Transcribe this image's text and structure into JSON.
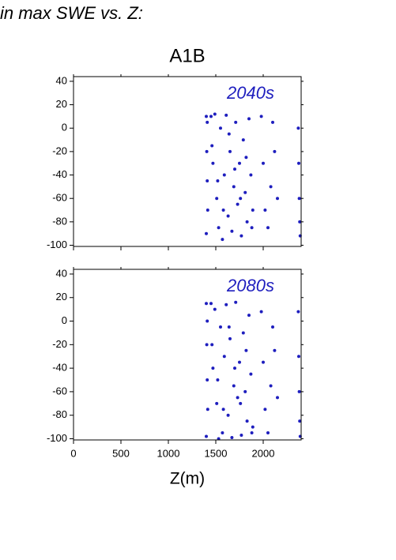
{
  "chart_data": [
    {
      "type": "scatter",
      "title": "in max SWE vs. Z:",
      "subtitle": "A1B",
      "annotation": "2040s",
      "xlim": [
        0,
        2400
      ],
      "ylim": [
        -101,
        44
      ],
      "yticks": [
        40,
        20,
        0,
        -20,
        -40,
        -60,
        -80,
        -100
      ],
      "series": [
        {
          "color": "#1e1ebe",
          "x": [
            1400,
            1405,
            1410,
            1415,
            1400,
            1410,
            1450,
            1470,
            1490,
            1510,
            1530,
            1550,
            1570,
            1590,
            1610,
            1630,
            1650,
            1670,
            1690,
            1710,
            1730,
            1750,
            1770,
            1790,
            1810,
            1830,
            1850,
            1870,
            1890,
            1460,
            1520,
            1580,
            1640,
            1700,
            1760,
            1820,
            1880,
            1980,
            2000,
            2020,
            2050,
            2080,
            2100,
            2120,
            2150,
            2370,
            2375,
            2380,
            2385,
            2390
          ],
          "values": [
            10,
            -20,
            -45,
            -70,
            -90,
            5,
            10,
            -30,
            12,
            -60,
            -85,
            0,
            -95,
            -40,
            11,
            -75,
            -20,
            -88,
            -50,
            5,
            -65,
            -30,
            -92,
            -10,
            -55,
            -80,
            8,
            -40,
            -70,
            -15,
            -45,
            -70,
            -5,
            -35,
            -60,
            -25,
            -85,
            10,
            -30,
            -70,
            -85,
            -50,
            5,
            -20,
            -60,
            0,
            -30,
            -60,
            -80,
            -92
          ]
        }
      ]
    },
    {
      "type": "scatter",
      "annotation": "2080s",
      "xlabel": "Z(m)",
      "xlim": [
        0,
        2400
      ],
      "ylim": [
        -101,
        44
      ],
      "xticks": [
        0,
        500,
        1000,
        1500,
        2000
      ],
      "yticks": [
        40,
        20,
        0,
        -20,
        -40,
        -60,
        -80,
        -100
      ],
      "series": [
        {
          "color": "#1e1ebe",
          "x": [
            1400,
            1405,
            1410,
            1415,
            1400,
            1410,
            1450,
            1470,
            1490,
            1510,
            1530,
            1550,
            1570,
            1590,
            1610,
            1630,
            1650,
            1670,
            1690,
            1710,
            1730,
            1750,
            1770,
            1790,
            1810,
            1830,
            1850,
            1870,
            1890,
            1460,
            1520,
            1580,
            1640,
            1700,
            1760,
            1820,
            1880,
            1980,
            2000,
            2020,
            2050,
            2080,
            2100,
            2120,
            2150,
            2370,
            2375,
            2380,
            2385,
            2390
          ],
          "values": [
            15,
            -20,
            -50,
            -75,
            -98,
            0,
            15,
            -40,
            10,
            -70,
            -100,
            -5,
            -95,
            -30,
            14,
            -80,
            -15,
            -99,
            -55,
            16,
            -65,
            -35,
            -97,
            -10,
            -60,
            -85,
            5,
            -45,
            -90,
            -20,
            -50,
            -75,
            -5,
            -40,
            -70,
            -25,
            -95,
            8,
            -35,
            -75,
            -95,
            -55,
            -5,
            -25,
            -65,
            8,
            -30,
            -60,
            -85,
            -98
          ]
        }
      ]
    }
  ]
}
